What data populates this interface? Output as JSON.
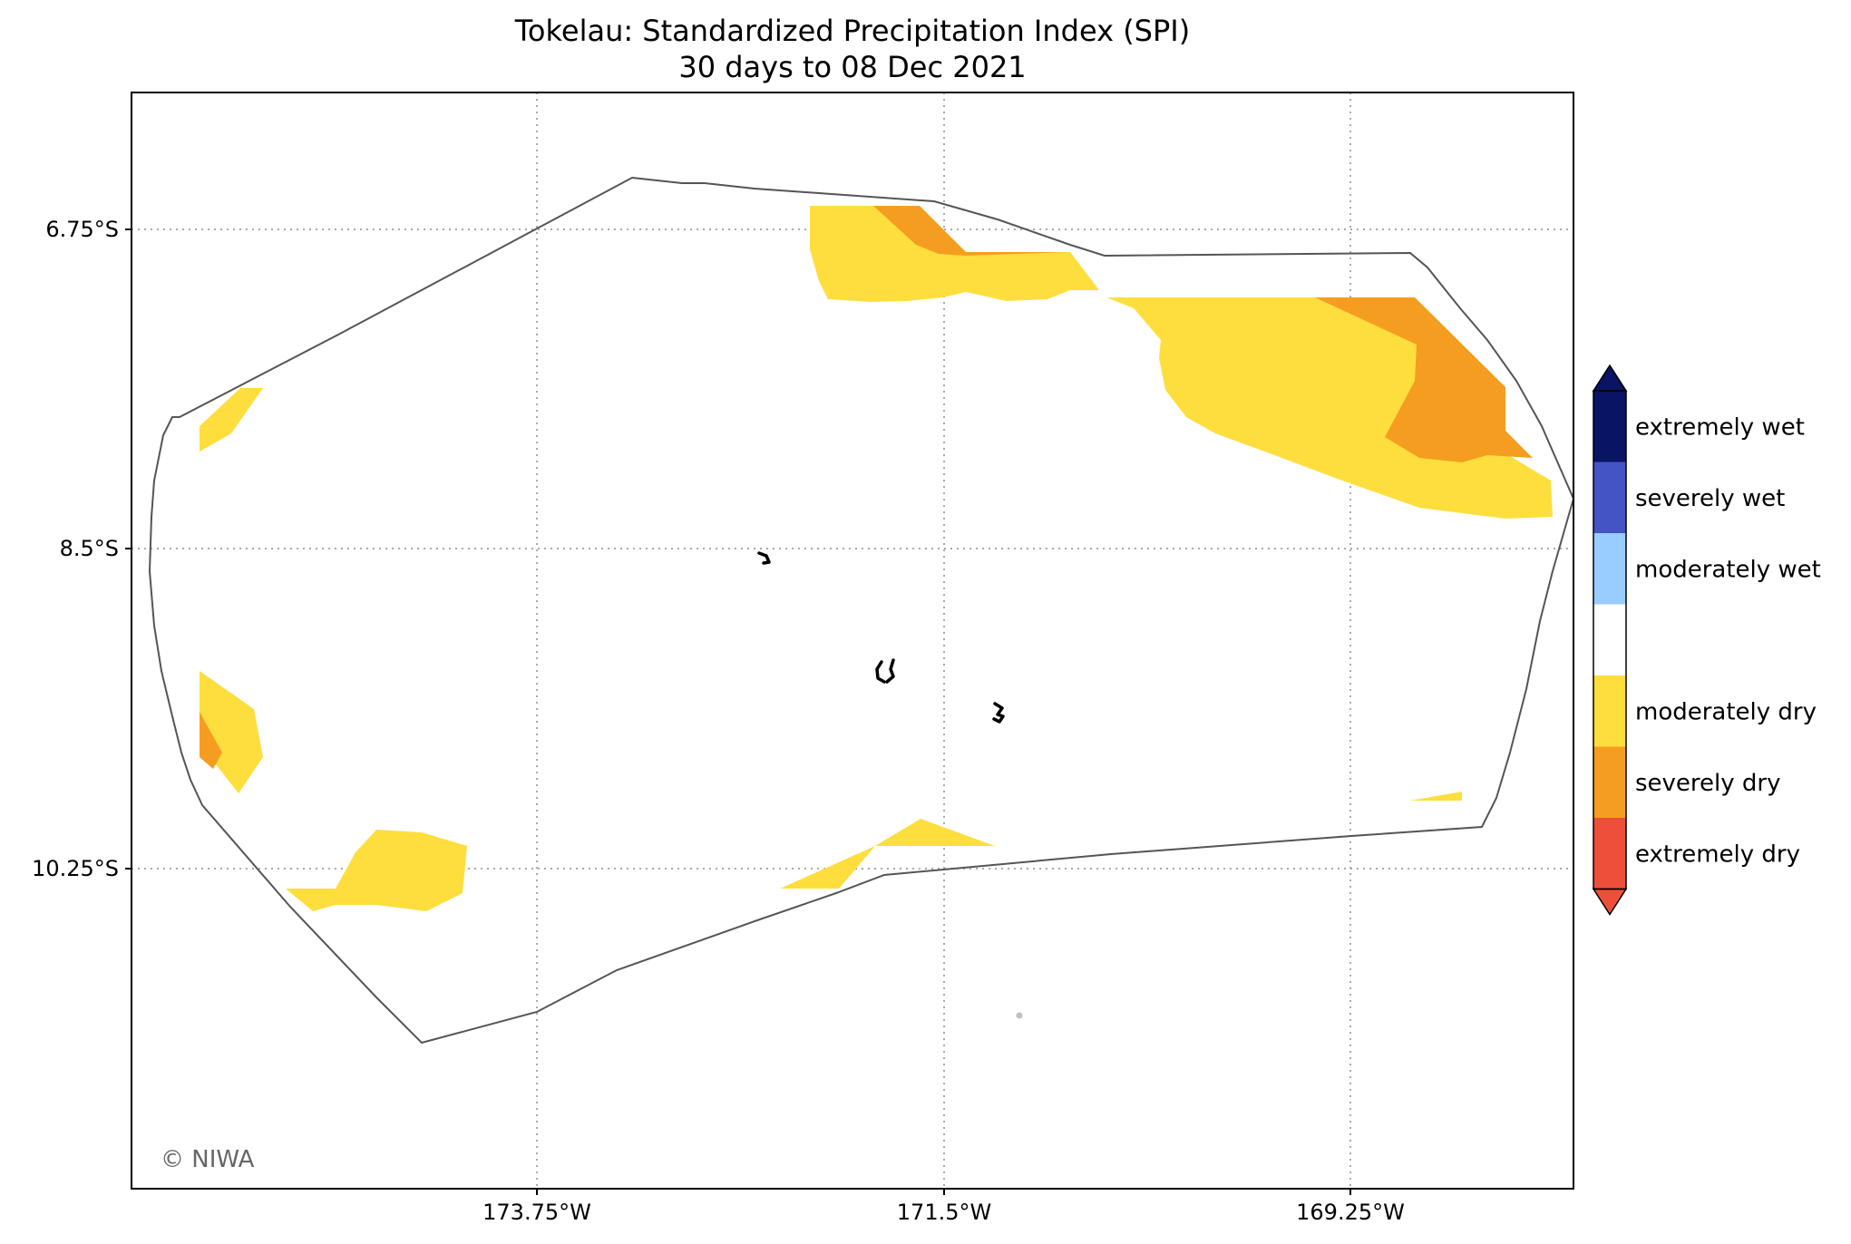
{
  "map": {
    "title": "Tokelau: Standardized Precipitation Index (SPI)",
    "subtitle": "30 days to 08 Dec 2021",
    "x_ticks": [
      "173.75°W",
      "171.5°W",
      "169.25°W"
    ],
    "y_ticks": [
      "6.75°S",
      "8.5°S",
      "10.25°S"
    ],
    "credit": "© NIWA",
    "grid": true
  },
  "legend": {
    "categories": [
      {
        "label": "extremely wet",
        "color": "#0a1464"
      },
      {
        "label": "severely wet",
        "color": "#4454c4"
      },
      {
        "label": "moderately wet",
        "color": "#99ccff"
      },
      {
        "label": "",
        "color": "#ffffff"
      },
      {
        "label": "moderately dry",
        "color": "#fede3d"
      },
      {
        "label": "severely dry",
        "color": "#f59d20"
      },
      {
        "label": "extremely dry",
        "color": "#ee4f3a"
      }
    ]
  },
  "colors": {
    "moderately_dry": "#fede3d",
    "severely_dry": "#f59d20",
    "eez_boundary": "#555555",
    "gridline": "#aaaaaa"
  }
}
